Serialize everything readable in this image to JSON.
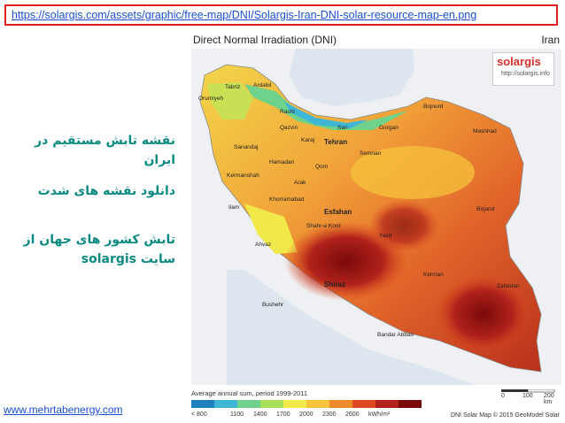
{
  "url": "https://solargis.com/assets/graphic/free-map/DNI/Solargis-Iran-DNI-solar-resource-map-en.png",
  "persian_lines": [
    "نقشه تابش مستقیم در ایران",
    "دانلود نقشه های شدت",
    "تابش کشور های جهان از سایت solargis"
  ],
  "site_link": "www.mehrtabenergy.com",
  "map": {
    "title": "Direct Normal Irradiation (DNI)",
    "country": "Iran",
    "logo": {
      "brand": "solargis",
      "url": "http://solargis.info"
    },
    "cities": [
      "Tabriz",
      "Ardabil",
      "Orumiyeh",
      "Rasht",
      "Karaj",
      "Tehran",
      "Qazvin",
      "Sari",
      "Gorgan",
      "Bojnurd",
      "Mashhad",
      "Semnan",
      "Sanandaj",
      "Hamadan",
      "Qom",
      "Kermanshah",
      "Arak",
      "Ilam",
      "Khorramabad",
      "Esfahan",
      "Ahvaz",
      "Shahr-e Kord",
      "Yazd",
      "Birjand",
      "Shiraz",
      "Kerman",
      "Zahedan",
      "Bushehr",
      "Bandar Abbas"
    ],
    "legend": {
      "caption": "Average annual sum, period 1999-2011",
      "colors": [
        "#1f7fbf",
        "#3fb6d6",
        "#6fd28a",
        "#a8e05a",
        "#f1e94a",
        "#f7c33c",
        "#ef8a2b",
        "#de4a1f",
        "#b1221b",
        "#7a0a0a"
      ],
      "labels": [
        "< 800",
        "1100",
        "1400",
        "1700",
        "2000",
        "2300",
        "2600",
        "kWh/m²"
      ]
    },
    "scale_labels": [
      "0",
      "100",
      "200 km"
    ],
    "footer": "DNI Solar Map © 2015 GeoModel Solar"
  }
}
